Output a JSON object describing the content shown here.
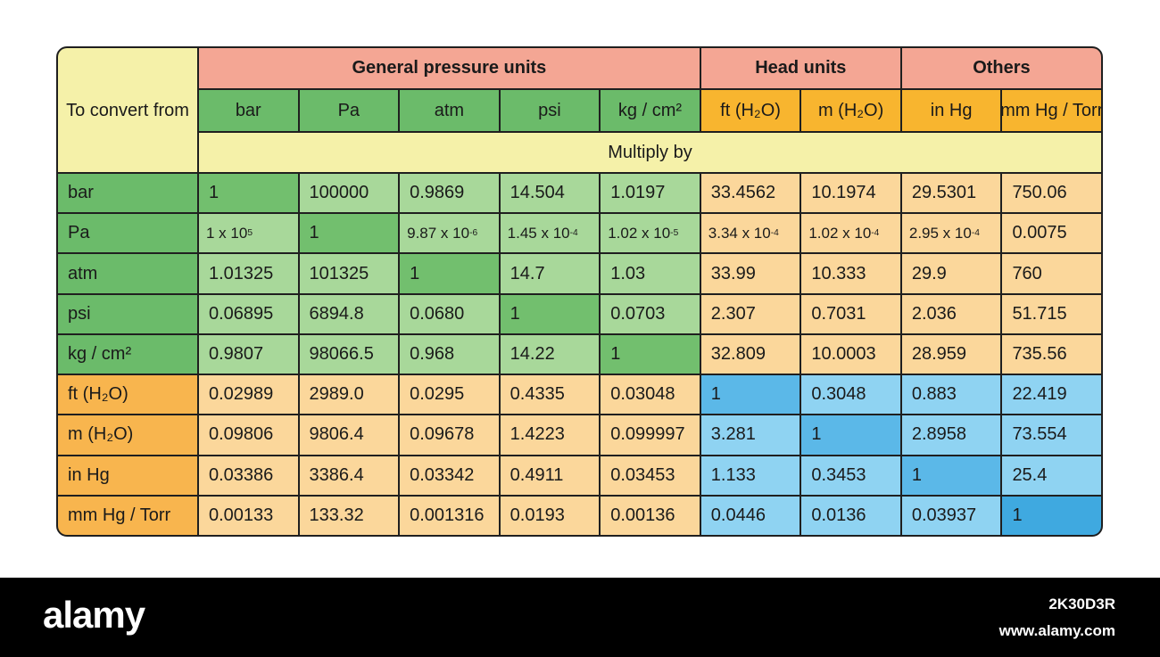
{
  "table": {
    "corner_label": "To convert from",
    "groups": [
      {
        "label": "General pressure units",
        "span": 5
      },
      {
        "label": "Head units",
        "span": 2
      },
      {
        "label": "Others",
        "span": 2
      }
    ],
    "columns": [
      {
        "label": "bar",
        "group": "general"
      },
      {
        "label": "Pa",
        "group": "general"
      },
      {
        "label": "atm",
        "group": "general"
      },
      {
        "label": "psi",
        "group": "general"
      },
      {
        "label": "kg / cm²",
        "group": "general"
      },
      {
        "label": "ft (H₂O)",
        "group": "other"
      },
      {
        "label": "m (H₂O)",
        "group": "other"
      },
      {
        "label": "in Hg",
        "group": "other"
      },
      {
        "label": "mm Hg / Torr",
        "group": "other"
      }
    ],
    "multiply_label": "Multiply by",
    "rows": [
      {
        "label": "bar",
        "type": "general",
        "cells": [
          {
            "v": "1",
            "b": "1",
            "e": ""
          },
          {
            "v": "100000",
            "b": "100000",
            "e": ""
          },
          {
            "v": "0.9869",
            "b": "0.9869",
            "e": ""
          },
          {
            "v": "14.504",
            "b": "14.504",
            "e": ""
          },
          {
            "v": "1.0197",
            "b": "1.0197",
            "e": ""
          },
          {
            "v": "33.4562",
            "b": "33.4562",
            "e": ""
          },
          {
            "v": "10.1974",
            "b": "10.1974",
            "e": ""
          },
          {
            "v": "29.5301",
            "b": "29.5301",
            "e": ""
          },
          {
            "v": "750.06",
            "b": "750.06",
            "e": ""
          }
        ]
      },
      {
        "label": "Pa",
        "type": "general",
        "cells": [
          {
            "v": "1 x 10⁵",
            "b": "1 x 10",
            "e": "5"
          },
          {
            "v": "1",
            "b": "1",
            "e": ""
          },
          {
            "v": "9.87 x 10⁻⁶",
            "b": "9.87 x 10",
            "e": "-6"
          },
          {
            "v": "1.45 x 10⁻⁴",
            "b": "1.45 x 10",
            "e": "-4"
          },
          {
            "v": "1.02 x 10⁻⁵",
            "b": "1.02 x 10",
            "e": "-5"
          },
          {
            "v": "3.34 x 10⁻⁴",
            "b": "3.34 x 10",
            "e": "-4"
          },
          {
            "v": "1.02 x 10⁻⁴",
            "b": "1.02 x 10",
            "e": "-4"
          },
          {
            "v": "2.95 x 10⁻⁴",
            "b": "2.95 x 10",
            "e": "-4"
          },
          {
            "v": "0.0075",
            "b": "0.0075",
            "e": ""
          }
        ]
      },
      {
        "label": "atm",
        "type": "general",
        "cells": [
          {
            "v": "1.01325",
            "b": "1.01325",
            "e": ""
          },
          {
            "v": "101325",
            "b": "101325",
            "e": ""
          },
          {
            "v": "1",
            "b": "1",
            "e": ""
          },
          {
            "v": "14.7",
            "b": "14.7",
            "e": ""
          },
          {
            "v": "1.03",
            "b": "1.03",
            "e": ""
          },
          {
            "v": "33.99",
            "b": "33.99",
            "e": ""
          },
          {
            "v": "10.333",
            "b": "10.333",
            "e": ""
          },
          {
            "v": "29.9",
            "b": "29.9",
            "e": ""
          },
          {
            "v": "760",
            "b": "760",
            "e": ""
          }
        ]
      },
      {
        "label": "psi",
        "type": "general",
        "cells": [
          {
            "v": "0.06895",
            "b": "0.06895",
            "e": ""
          },
          {
            "v": "6894.8",
            "b": "6894.8",
            "e": ""
          },
          {
            "v": "0.0680",
            "b": "0.0680",
            "e": ""
          },
          {
            "v": "1",
            "b": "1",
            "e": ""
          },
          {
            "v": "0.0703",
            "b": "0.0703",
            "e": ""
          },
          {
            "v": "2.307",
            "b": "2.307",
            "e": ""
          },
          {
            "v": "0.7031",
            "b": "0.7031",
            "e": ""
          },
          {
            "v": "2.036",
            "b": "2.036",
            "e": ""
          },
          {
            "v": "51.715",
            "b": "51.715",
            "e": ""
          }
        ]
      },
      {
        "label": "kg / cm²",
        "type": "general",
        "cells": [
          {
            "v": "0.9807",
            "b": "0.9807",
            "e": ""
          },
          {
            "v": "98066.5",
            "b": "98066.5",
            "e": ""
          },
          {
            "v": "0.968",
            "b": "0.968",
            "e": ""
          },
          {
            "v": "14.22",
            "b": "14.22",
            "e": ""
          },
          {
            "v": "1",
            "b": "1",
            "e": ""
          },
          {
            "v": "32.809",
            "b": "32.809",
            "e": ""
          },
          {
            "v": "10.0003",
            "b": "10.0003",
            "e": ""
          },
          {
            "v": "28.959",
            "b": "28.959",
            "e": ""
          },
          {
            "v": "735.56",
            "b": "735.56",
            "e": ""
          }
        ]
      },
      {
        "label": "ft (H₂O)",
        "type": "other",
        "cells": [
          {
            "v": "0.02989",
            "b": "0.02989",
            "e": ""
          },
          {
            "v": "2989.0",
            "b": "2989.0",
            "e": ""
          },
          {
            "v": "0.0295",
            "b": "0.0295",
            "e": ""
          },
          {
            "v": "0.4335",
            "b": "0.4335",
            "e": ""
          },
          {
            "v": "0.03048",
            "b": "0.03048",
            "e": ""
          },
          {
            "v": "1",
            "b": "1",
            "e": ""
          },
          {
            "v": "0.3048",
            "b": "0.3048",
            "e": ""
          },
          {
            "v": "0.883",
            "b": "0.883",
            "e": ""
          },
          {
            "v": "22.419",
            "b": "22.419",
            "e": ""
          }
        ]
      },
      {
        "label": "m (H₂O)",
        "type": "other",
        "cells": [
          {
            "v": "0.09806",
            "b": "0.09806",
            "e": ""
          },
          {
            "v": "9806.4",
            "b": "9806.4",
            "e": ""
          },
          {
            "v": "0.09678",
            "b": "0.09678",
            "e": ""
          },
          {
            "v": "1.4223",
            "b": "1.4223",
            "e": ""
          },
          {
            "v": "0.099997",
            "b": "0.099997",
            "e": ""
          },
          {
            "v": "3.281",
            "b": "3.281",
            "e": ""
          },
          {
            "v": "1",
            "b": "1",
            "e": ""
          },
          {
            "v": "2.8958",
            "b": "2.8958",
            "e": ""
          },
          {
            "v": "73.554",
            "b": "73.554",
            "e": ""
          }
        ]
      },
      {
        "label": "in Hg",
        "type": "other",
        "cells": [
          {
            "v": "0.03386",
            "b": "0.03386",
            "e": ""
          },
          {
            "v": "3386.4",
            "b": "3386.4",
            "e": ""
          },
          {
            "v": "0.03342",
            "b": "0.03342",
            "e": ""
          },
          {
            "v": "0.4911",
            "b": "0.4911",
            "e": ""
          },
          {
            "v": "0.03453",
            "b": "0.03453",
            "e": ""
          },
          {
            "v": "1.133",
            "b": "1.133",
            "e": ""
          },
          {
            "v": "0.3453",
            "b": "0.3453",
            "e": ""
          },
          {
            "v": "1",
            "b": "1",
            "e": ""
          },
          {
            "v": "25.4",
            "b": "25.4",
            "e": ""
          }
        ]
      },
      {
        "label": "mm Hg / Torr",
        "type": "other",
        "cells": [
          {
            "v": "0.00133",
            "b": "0.00133",
            "e": ""
          },
          {
            "v": "133.32",
            "b": "133.32",
            "e": ""
          },
          {
            "v": "0.001316",
            "b": "0.001316",
            "e": ""
          },
          {
            "v": "0.0193",
            "b": "0.0193",
            "e": ""
          },
          {
            "v": "0.00136",
            "b": "0.00136",
            "e": ""
          },
          {
            "v": "0.0446",
            "b": "0.0446",
            "e": ""
          },
          {
            "v": "0.0136",
            "b": "0.0136",
            "e": ""
          },
          {
            "v": "0.03937",
            "b": "0.03937",
            "e": ""
          },
          {
            "v": "1",
            "b": "1",
            "e": ""
          }
        ]
      }
    ]
  },
  "footer": {
    "logo_text": "alamy",
    "image_id": "2K30D3R",
    "site_url": "www.alamy.com"
  },
  "colors": {
    "group_header": "#f4a694",
    "general_unit_header": "#6bbb6a",
    "other_unit_header": "#f8b52f",
    "multiply_row": "#f5f1a9",
    "general_cell": "#a8d89a",
    "general_diagonal": "#72bf6e",
    "peach_cell": "#fbd79b",
    "blue_cell": "#8fd3f2",
    "blue_diagonal": "#5bb8e8",
    "footer_bg": "#000000"
  }
}
